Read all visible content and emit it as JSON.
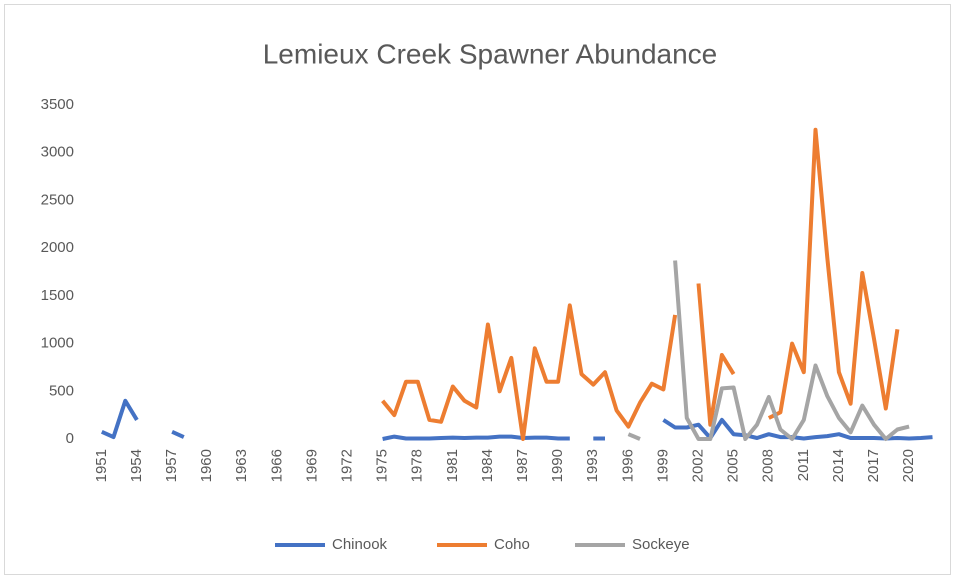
{
  "chart_data": {
    "type": "line",
    "title": "Lemieux Creek Spawner Abundance",
    "categories": [
      "1951",
      null,
      null,
      "1954",
      null,
      null,
      "1957",
      null,
      null,
      "1960",
      null,
      null,
      "1963",
      null,
      null,
      "1966",
      null,
      null,
      "1969",
      null,
      null,
      "1972",
      null,
      null,
      "1975",
      null,
      null,
      "1978",
      null,
      null,
      "1981",
      null,
      null,
      "1984",
      null,
      null,
      "1987",
      null,
      null,
      "1990",
      null,
      null,
      "1993",
      null,
      null,
      "1996",
      null,
      null,
      "1999",
      null,
      null,
      "2002",
      null,
      null,
      "2005",
      null,
      null,
      "2008",
      null,
      null,
      "2011",
      null,
      null,
      "2014",
      null,
      null,
      "2017",
      null,
      null,
      "2020",
      null,
      null
    ],
    "series": [
      {
        "name": "Chinook",
        "color": "#4472c4",
        "values": [
          75,
          20,
          400,
          200,
          null,
          null,
          75,
          20,
          null,
          null,
          null,
          null,
          null,
          null,
          null,
          null,
          null,
          null,
          null,
          null,
          null,
          null,
          null,
          null,
          0,
          25,
          5,
          5,
          5,
          10,
          15,
          10,
          15,
          15,
          25,
          25,
          10,
          15,
          15,
          5,
          5,
          null,
          5,
          5,
          null,
          null,
          null,
          null,
          200,
          120,
          120,
          150,
          10,
          200,
          50,
          40,
          10,
          50,
          20,
          20,
          5,
          20,
          30,
          50,
          10,
          10,
          10,
          5,
          10,
          5,
          10,
          20
        ]
      },
      {
        "name": "Coho",
        "color": "#ed7d31",
        "values": [
          null,
          null,
          null,
          null,
          null,
          null,
          null,
          null,
          null,
          null,
          null,
          null,
          null,
          null,
          null,
          null,
          null,
          null,
          null,
          null,
          null,
          null,
          null,
          null,
          400,
          250,
          600,
          600,
          200,
          180,
          550,
          400,
          330,
          1200,
          500,
          850,
          0,
          950,
          600,
          600,
          1400,
          680,
          570,
          700,
          300,
          130,
          380,
          580,
          520,
          1300,
          null,
          1630,
          150,
          880,
          680,
          null,
          null,
          220,
          280,
          1000,
          700,
          3240,
          1900,
          700,
          370,
          1740,
          1050,
          320,
          1150,
          null,
          null,
          null
        ]
      },
      {
        "name": "Sockeye",
        "color": "#a5a5a5",
        "values": [
          null,
          null,
          null,
          null,
          null,
          null,
          null,
          null,
          null,
          null,
          null,
          null,
          null,
          null,
          null,
          null,
          null,
          null,
          null,
          null,
          null,
          null,
          null,
          null,
          null,
          null,
          null,
          null,
          null,
          null,
          null,
          null,
          null,
          null,
          null,
          null,
          null,
          null,
          null,
          null,
          null,
          null,
          null,
          null,
          null,
          50,
          0,
          null,
          null,
          1870,
          220,
          0,
          0,
          530,
          540,
          0,
          150,
          440,
          100,
          0,
          200,
          770,
          450,
          220,
          70,
          350,
          150,
          0,
          100,
          130,
          null,
          null
        ]
      }
    ],
    "ylim": [
      0,
      3500
    ],
    "yticks": [
      0,
      500,
      1000,
      1500,
      2000,
      2500,
      3000,
      3500
    ],
    "grid": false,
    "legend": "bottom"
  }
}
